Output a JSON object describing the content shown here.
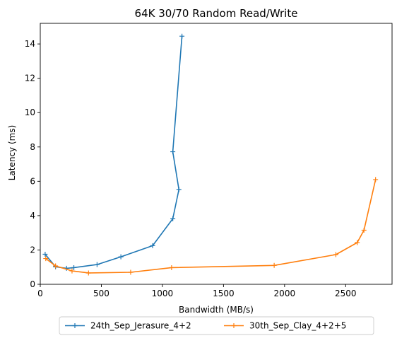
{
  "chart_data": {
    "type": "line",
    "title": "64K 30/70  Random Read/Write",
    "xlabel": "Bandwidth (MB/s)",
    "ylabel": "Latency (ms)",
    "xlim": [
      0,
      2880
    ],
    "ylim": [
      0,
      15.2
    ],
    "xticks": [
      0,
      500,
      1000,
      1500,
      2000,
      2500
    ],
    "yticks": [
      0,
      2,
      4,
      6,
      8,
      10,
      12,
      14
    ],
    "grid": false,
    "legend_position": "bottom-center, below plot",
    "marker": "plus",
    "series": [
      {
        "name": "24th_Sep_Jerasure_4+2",
        "color": "#1f77b4",
        "points": [
          [
            40,
            1.75
          ],
          [
            125,
            1.02
          ],
          [
            215,
            0.93
          ],
          [
            275,
            0.97
          ],
          [
            465,
            1.15
          ],
          [
            660,
            1.6
          ],
          [
            920,
            2.25
          ],
          [
            1085,
            3.82
          ],
          [
            1135,
            5.52
          ],
          [
            1085,
            7.72
          ],
          [
            1160,
            14.45
          ]
        ]
      },
      {
        "name": "30th_Sep_Clay_4+2+5",
        "color": "#ff7f0e",
        "points": [
          [
            45,
            1.5
          ],
          [
            125,
            1.07
          ],
          [
            260,
            0.78
          ],
          [
            395,
            0.66
          ],
          [
            740,
            0.7
          ],
          [
            1075,
            0.97
          ],
          [
            1915,
            1.1
          ],
          [
            2420,
            1.73
          ],
          [
            2595,
            2.43
          ],
          [
            2650,
            3.15
          ],
          [
            2745,
            6.1
          ]
        ]
      }
    ]
  }
}
